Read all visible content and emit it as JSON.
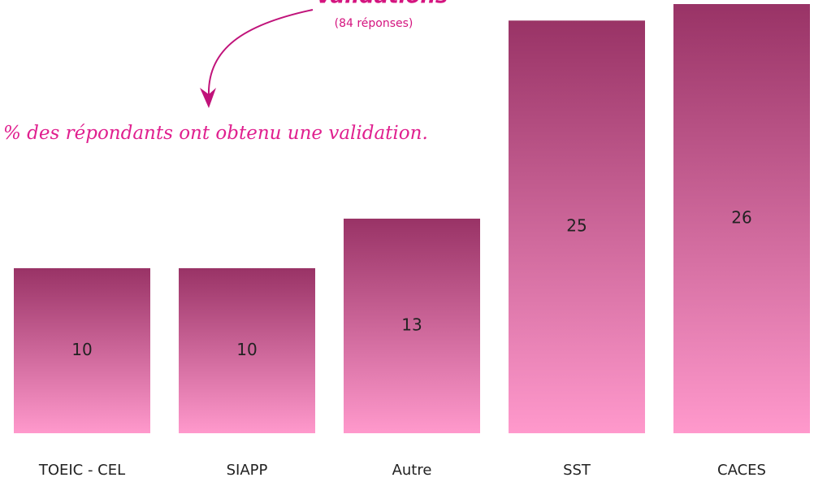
{
  "chart_data": {
    "type": "bar",
    "title": "Validations",
    "subtitle": "(84 réponses)",
    "annotation": "% des répondants ont obtenu une validation.",
    "categories": [
      "TOEIC - CEL",
      "SIAPP",
      "Autre",
      "SST",
      "CACES"
    ],
    "values": [
      10,
      10,
      13,
      25,
      26
    ],
    "color": [
      "#993366",
      "#ff99cc"
    ]
  }
}
